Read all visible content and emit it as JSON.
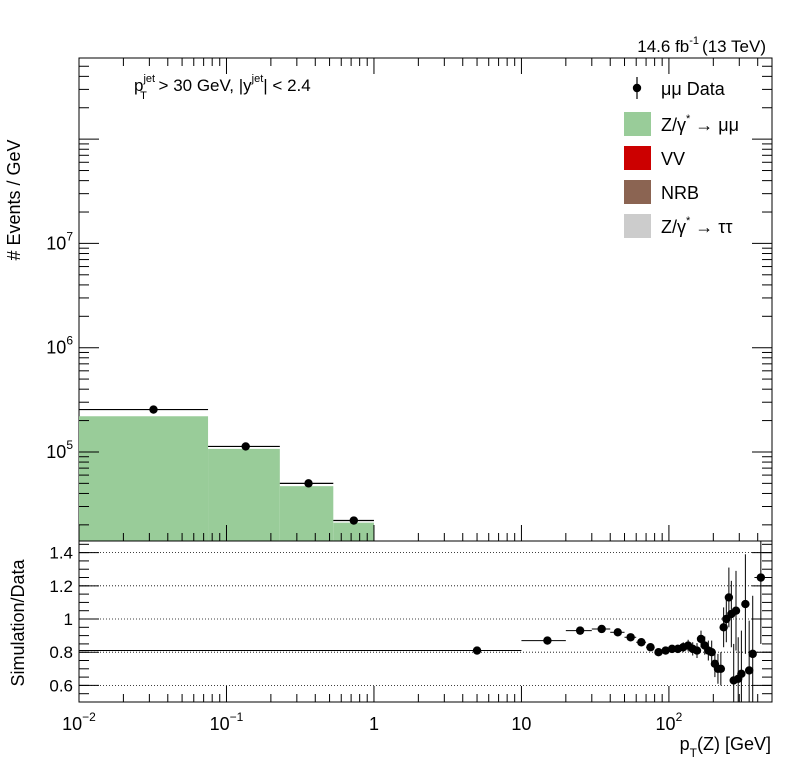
{
  "lumi_text": "14.6 fb",
  "lumi_exp": "-1",
  "lumi_energy": "(13 TeV)",
  "cut_text": {
    "pt_p": "p",
    "pt_jet": "jet",
    "pt_sub": "T",
    "pt_cut": " > 30 GeV,  |y",
    "y_jet": "jet",
    "y_cut": "| < 2.4"
  },
  "legend": {
    "data": "μμ Data",
    "zmumu": "Z/γ",
    "zmumu_star": "*",
    "zmumu_arrow": " → μμ",
    "vv": "VV",
    "nrb": "NRB",
    "ztautau": "Z/γ",
    "ztautau_star": "*",
    "ztautau_arrow": " → ττ"
  },
  "colors": {
    "zmumu": "#99cc99",
    "vv": "#cc0000",
    "nrb": "#8b6452",
    "ztautau": "#cccccc",
    "data": "#000000"
  },
  "chart_data": [
    {
      "type": "bar",
      "panel": "main",
      "ylabel": "# Events / GeV",
      "yscale": "log",
      "xscale": "log",
      "xlim": [
        0.01,
        500
      ],
      "ylim": [
        14000,
        600000000
      ],
      "yticks": [
        {
          "base": "10",
          "exp": "5",
          "value": 100000
        },
        {
          "base": "10",
          "exp": "6",
          "value": 1000000
        },
        {
          "base": "10",
          "exp": "7",
          "value": 10000000
        }
      ],
      "series": [
        {
          "name": "Z/γ* → μμ",
          "kind": "hist",
          "bins": [
            {
              "lo": 0.01,
              "hi": 0.075,
              "value": 220000
            },
            {
              "lo": 0.075,
              "hi": 0.23,
              "value": 107000
            },
            {
              "lo": 0.23,
              "hi": 0.53,
              "value": 47000
            },
            {
              "lo": 0.53,
              "hi": 1.0,
              "value": 21000
            }
          ]
        },
        {
          "name": "μμ Data",
          "kind": "points",
          "points": [
            {
              "x": 0.032,
              "y": 255000,
              "xlo": 0.01,
              "xhi": 0.075
            },
            {
              "x": 0.135,
              "y": 113000,
              "xlo": 0.075,
              "xhi": 0.23
            },
            {
              "x": 0.36,
              "y": 50000,
              "xlo": 0.23,
              "xhi": 0.53
            },
            {
              "x": 0.73,
              "y": 22000,
              "xlo": 0.53,
              "xhi": 1.0
            }
          ]
        }
      ]
    },
    {
      "type": "scatter",
      "panel": "ratio",
      "xlabel_p": "p",
      "xlabel_sub": "T",
      "xlabel_rest": "(Z) [GeV]",
      "ylabel": "Simulation/Data",
      "xscale": "log",
      "xlim": [
        0.01,
        500
      ],
      "ylim": [
        0.5,
        1.47
      ],
      "xticks": [
        {
          "base": "10",
          "exp": "−2",
          "value": 0.01
        },
        {
          "base": "10",
          "exp": "−1",
          "value": 0.1
        },
        {
          "label": "1",
          "value": 1
        },
        {
          "label": "10",
          "value": 10
        },
        {
          "base": "10",
          "exp": "2",
          "value": 100
        }
      ],
      "yticks": [
        {
          "label": "0.6",
          "value": 0.6
        },
        {
          "label": "0.8",
          "value": 0.8
        },
        {
          "label": "1",
          "value": 1.0
        },
        {
          "label": "1.2",
          "value": 1.2
        },
        {
          "label": "1.4",
          "value": 1.4
        }
      ],
      "grid": true,
      "points": [
        {
          "x": 5.0,
          "y": 0.81,
          "xlo": 0.01,
          "xhi": 10,
          "err": 0.0
        },
        {
          "x": 15,
          "y": 0.87,
          "xlo": 10,
          "xhi": 20,
          "err": 0.005
        },
        {
          "x": 25,
          "y": 0.93,
          "xlo": 20,
          "xhi": 30,
          "err": 0.008
        },
        {
          "x": 35,
          "y": 0.94,
          "xlo": 30,
          "xhi": 40,
          "err": 0.01
        },
        {
          "x": 45,
          "y": 0.92,
          "xlo": 40,
          "xhi": 50,
          "err": 0.01
        },
        {
          "x": 55,
          "y": 0.89,
          "xlo": 50,
          "xhi": 60,
          "err": 0.012
        },
        {
          "x": 65,
          "y": 0.86,
          "xlo": 60,
          "xhi": 70,
          "err": 0.014
        },
        {
          "x": 75,
          "y": 0.83,
          "xlo": 70,
          "xhi": 80,
          "err": 0.016
        },
        {
          "x": 85,
          "y": 0.8,
          "xlo": 80,
          "xhi": 90,
          "err": 0.018
        },
        {
          "x": 95,
          "y": 0.81,
          "xlo": 90,
          "xhi": 100,
          "err": 0.02
        },
        {
          "x": 105,
          "y": 0.82,
          "xlo": 100,
          "xhi": 110,
          "err": 0.022
        },
        {
          "x": 115,
          "y": 0.82,
          "xlo": 110,
          "xhi": 120,
          "err": 0.025
        },
        {
          "x": 125,
          "y": 0.83,
          "xlo": 120,
          "xhi": 130,
          "err": 0.03
        },
        {
          "x": 135,
          "y": 0.84,
          "xlo": 130,
          "xhi": 140,
          "err": 0.035
        },
        {
          "x": 145,
          "y": 0.82,
          "xlo": 140,
          "xhi": 150,
          "err": 0.04
        },
        {
          "x": 155,
          "y": 0.81,
          "xlo": 150,
          "xhi": 160,
          "err": 0.045
        },
        {
          "x": 165,
          "y": 0.88,
          "xlo": 160,
          "xhi": 170,
          "err": 0.05
        },
        {
          "x": 175,
          "y": 0.84,
          "xlo": 170,
          "xhi": 180,
          "err": 0.055
        },
        {
          "x": 185,
          "y": 0.81,
          "xlo": 180,
          "xhi": 190,
          "err": 0.06
        },
        {
          "x": 195,
          "y": 0.8,
          "xlo": 190,
          "xhi": 200,
          "err": 0.07
        },
        {
          "x": 205,
          "y": 0.73,
          "xlo": 200,
          "xhi": 210,
          "err": 0.08
        },
        {
          "x": 215,
          "y": 0.7,
          "xlo": 210,
          "xhi": 220,
          "err": 0.09
        },
        {
          "x": 225,
          "y": 0.7,
          "xlo": 220,
          "xhi": 230,
          "err": 0.1
        },
        {
          "x": 235,
          "y": 0.95,
          "xlo": 230,
          "xhi": 240,
          "err": 0.12
        },
        {
          "x": 245,
          "y": 1.0,
          "xlo": 240,
          "xhi": 250,
          "err": 0.14
        },
        {
          "x": 255,
          "y": 1.13,
          "xlo": 250,
          "xhi": 260,
          "err": 0.18
        },
        {
          "x": 265,
          "y": 1.03,
          "xlo": 260,
          "xhi": 270,
          "err": 0.2
        },
        {
          "x": 275,
          "y": 0.63,
          "xlo": 270,
          "xhi": 280,
          "err": 0.22
        },
        {
          "x": 285,
          "y": 1.05,
          "xlo": 280,
          "xhi": 290,
          "err": 0.24
        },
        {
          "x": 295,
          "y": 0.64,
          "xlo": 290,
          "xhi": 300,
          "err": 0.25
        },
        {
          "x": 310,
          "y": 0.67,
          "xlo": 300,
          "xhi": 320,
          "err": 0.26
        },
        {
          "x": 330,
          "y": 1.09,
          "xlo": 320,
          "xhi": 340,
          "err": 0.3
        },
        {
          "x": 350,
          "y": 0.69,
          "xlo": 340,
          "xhi": 360,
          "err": 0.3
        },
        {
          "x": 370,
          "y": 0.79,
          "xlo": 360,
          "xhi": 380,
          "err": 0.35
        },
        {
          "x": 420,
          "y": 1.25,
          "xlo": 380,
          "xhi": 460,
          "err": 0.4
        }
      ]
    }
  ]
}
